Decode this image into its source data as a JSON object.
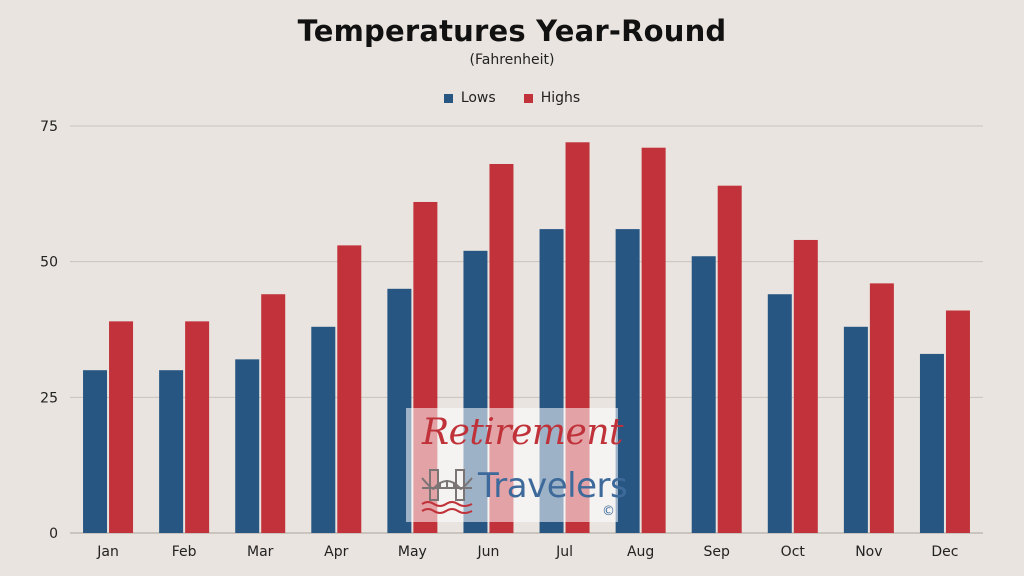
{
  "chart_data": {
    "type": "bar",
    "title": "Temperatures Year-Round",
    "subtitle": "(Fahrenheit)",
    "categories": [
      "Jan",
      "Feb",
      "Mar",
      "Apr",
      "May",
      "Jun",
      "Jul",
      "Aug",
      "Sep",
      "Oct",
      "Nov",
      "Dec"
    ],
    "series": [
      {
        "name": "Lows",
        "color": "#275682",
        "values": [
          30,
          30,
          32,
          38,
          45,
          52,
          56,
          56,
          51,
          44,
          38,
          33
        ]
      },
      {
        "name": "Highs",
        "color": "#c1323a",
        "values": [
          39,
          39,
          44,
          53,
          61,
          68,
          72,
          71,
          64,
          54,
          46,
          41
        ]
      }
    ],
    "ylim": [
      0,
      75
    ],
    "yticks": [
      0,
      25,
      50,
      75
    ],
    "grid": true,
    "legend_position": "top-center"
  },
  "watermark": {
    "line1": "Retirement",
    "line2": "Travelers",
    "mark": "©",
    "icon": "bridge-icon"
  }
}
